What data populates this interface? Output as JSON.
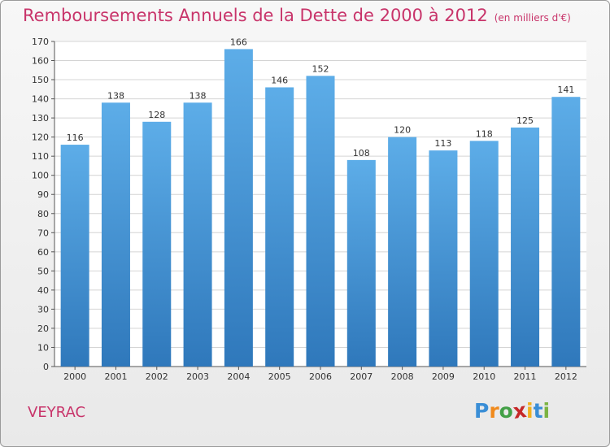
{
  "header": {
    "title": "Remboursements Annuels de la Dette de 2000 à 2012",
    "subtitle": "(en milliers d'€)"
  },
  "footer": {
    "place": "VEYRAC",
    "logo_letters": [
      "P",
      "r",
      "o",
      "x",
      "i",
      "t",
      "i"
    ],
    "logo_colors": [
      "#3a8ed6",
      "#f08a1c",
      "#43a047",
      "#c62828",
      "#f2b01e",
      "#3a8ed6",
      "#7cb342"
    ]
  },
  "chart_data": {
    "type": "bar",
    "title": "Remboursements Annuels de la Dette de 2000 à 2012",
    "subtitle": "(en milliers d'€)",
    "categories": [
      "2000",
      "2001",
      "2002",
      "2003",
      "2004",
      "2005",
      "2006",
      "2007",
      "2008",
      "2009",
      "2010",
      "2011",
      "2012"
    ],
    "values": [
      116,
      138,
      128,
      138,
      166,
      146,
      152,
      108,
      120,
      113,
      118,
      125,
      141
    ],
    "ylim": [
      0,
      170
    ],
    "yticks": [
      0,
      10,
      20,
      30,
      40,
      50,
      60,
      70,
      80,
      90,
      100,
      110,
      120,
      130,
      140,
      150,
      160,
      170
    ],
    "grid": true,
    "bar_color_top": "#5dade8",
    "bar_color_bottom": "#2f78bb"
  }
}
